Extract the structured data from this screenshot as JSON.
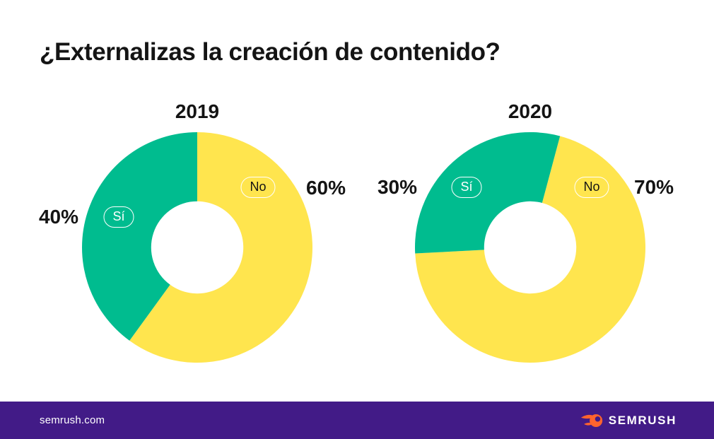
{
  "title": "¿Externalizas la creación de contenido?",
  "colors": {
    "yes_green": "#00BC8F",
    "no_yellow": "#FFE54E",
    "footer_purple": "#421B87",
    "logo_orange": "#FF642D",
    "text_black": "#141414",
    "pill_border": "#FFFFFF"
  },
  "chart_data": [
    {
      "type": "pie",
      "subtype": "donut",
      "title": "2019",
      "rotation_deg_clockwise_from_top": 0,
      "hole_ratio": 0.4,
      "legend_position": "on-slice-pills",
      "slices": [
        {
          "label": "No",
          "value_pct": 60,
          "display": "60%",
          "color": "#FFE54E"
        },
        {
          "label": "Sí",
          "value_pct": 40,
          "display": "40%",
          "color": "#00BC8F"
        }
      ]
    },
    {
      "type": "pie",
      "subtype": "donut",
      "title": "2020",
      "rotation_deg_clockwise_from_top": 15,
      "hole_ratio": 0.4,
      "legend_position": "on-slice-pills",
      "slices": [
        {
          "label": "No",
          "value_pct": 70,
          "display": "70%",
          "color": "#FFE54E"
        },
        {
          "label": "Sí",
          "value_pct": 30,
          "display": "30%",
          "color": "#00BC8F"
        }
      ]
    }
  ],
  "footer": {
    "site": "semrush.com",
    "brand": "SEMRUSH"
  }
}
